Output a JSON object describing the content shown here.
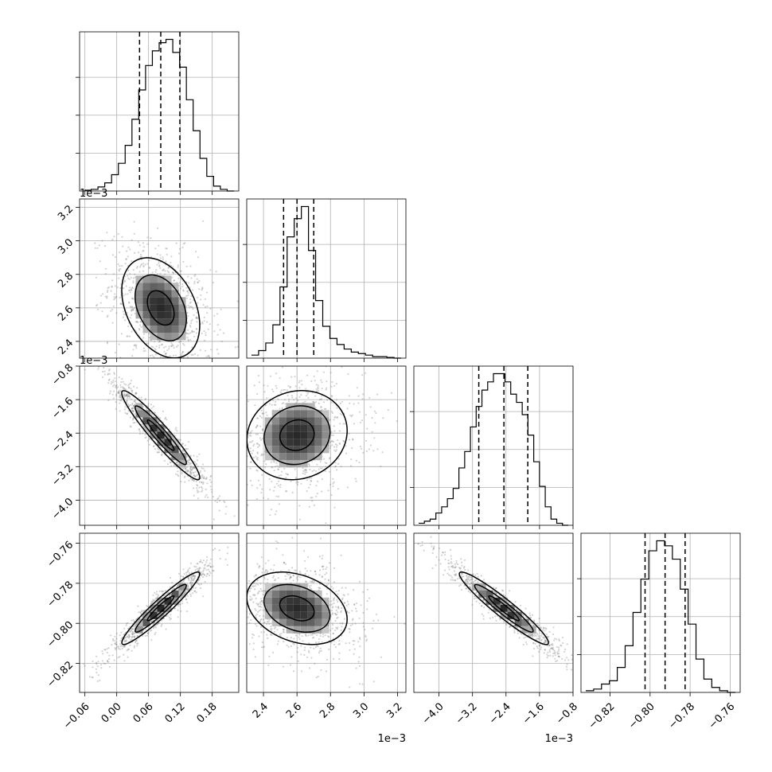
{
  "chart_data": {
    "type": "corner",
    "parameters": [
      {
        "id": "p1",
        "range": [
          -0.07,
          0.23
        ],
        "ticks": [
          -0.06,
          0.0,
          0.06,
          0.12,
          0.18
        ],
        "tick_labels": [
          "−0.06",
          "0.00",
          "0.06",
          "0.12",
          "0.18"
        ],
        "exponent": "",
        "quantiles": [
          0.043,
          0.083,
          0.119
        ],
        "hist": [
          0.5,
          1,
          2.5,
          5,
          10,
          17,
          28,
          44,
          62,
          77,
          86,
          91,
          93,
          85,
          76,
          56,
          37,
          20,
          9,
          3,
          1,
          0
        ]
      },
      {
        "id": "p2",
        "range": [
          2.3,
          3.25
        ],
        "ticks": [
          2.4,
          2.6,
          2.8,
          3.0,
          3.2
        ],
        "tick_labels": [
          "2.4",
          "2.6",
          "2.8",
          "3.0",
          "3.2"
        ],
        "exponent": "1e−3",
        "quantiles": [
          2.52,
          2.6,
          2.7
        ],
        "hist": [
          2,
          5,
          10,
          22,
          47,
          80,
          92,
          100,
          71,
          38,
          21,
          13,
          9,
          6,
          4,
          3,
          2,
          1,
          1,
          0.5,
          0
        ]
      },
      {
        "id": "p3",
        "range": [
          -4.6,
          -0.8
        ],
        "ticks": [
          -4.0,
          -3.2,
          -2.4,
          -1.6,
          -0.8
        ],
        "tick_labels": [
          "−4.0",
          "−3.2",
          "−2.4",
          "−1.6",
          "−0.8"
        ],
        "exponent": "1e−3",
        "quantiles": [
          -3.05,
          -2.45,
          -1.88
        ],
        "hist": [
          1,
          2,
          3,
          6,
          9,
          13,
          18,
          28,
          36,
          48,
          58,
          66,
          70,
          74,
          74,
          70,
          64,
          60,
          54,
          44,
          31,
          19,
          9,
          3,
          1,
          0
        ]
      },
      {
        "id": "p4",
        "range": [
          -0.8345,
          -0.755
        ],
        "ticks": [
          -0.82,
          -0.8,
          -0.78,
          -0.76
        ],
        "tick_labels": [
          "−0.82",
          "−0.80",
          "−0.78",
          "−0.76"
        ],
        "exponent": "",
        "quantiles": [
          -0.8025,
          -0.7925,
          -0.7825
        ],
        "hist": [
          1,
          2,
          5,
          7,
          15,
          28,
          48,
          68,
          85,
          91,
          88,
          80,
          62,
          41,
          20,
          8,
          3,
          1,
          0
        ]
      }
    ],
    "correlations": [
      [
        1,
        -0.35,
        -0.95,
        0.95
      ],
      [
        -0.35,
        1,
        0.1,
        -0.3
      ],
      [
        -0.95,
        0.1,
        1,
        -0.95
      ],
      [
        0.95,
        -0.3,
        -0.95,
        1
      ]
    ],
    "sigma_fraction": [
      0.14,
      0.18,
      0.16,
      0.13
    ],
    "scatter_points_per_panel": 950,
    "contour_levels": 3,
    "grid": true,
    "legend": "none"
  }
}
